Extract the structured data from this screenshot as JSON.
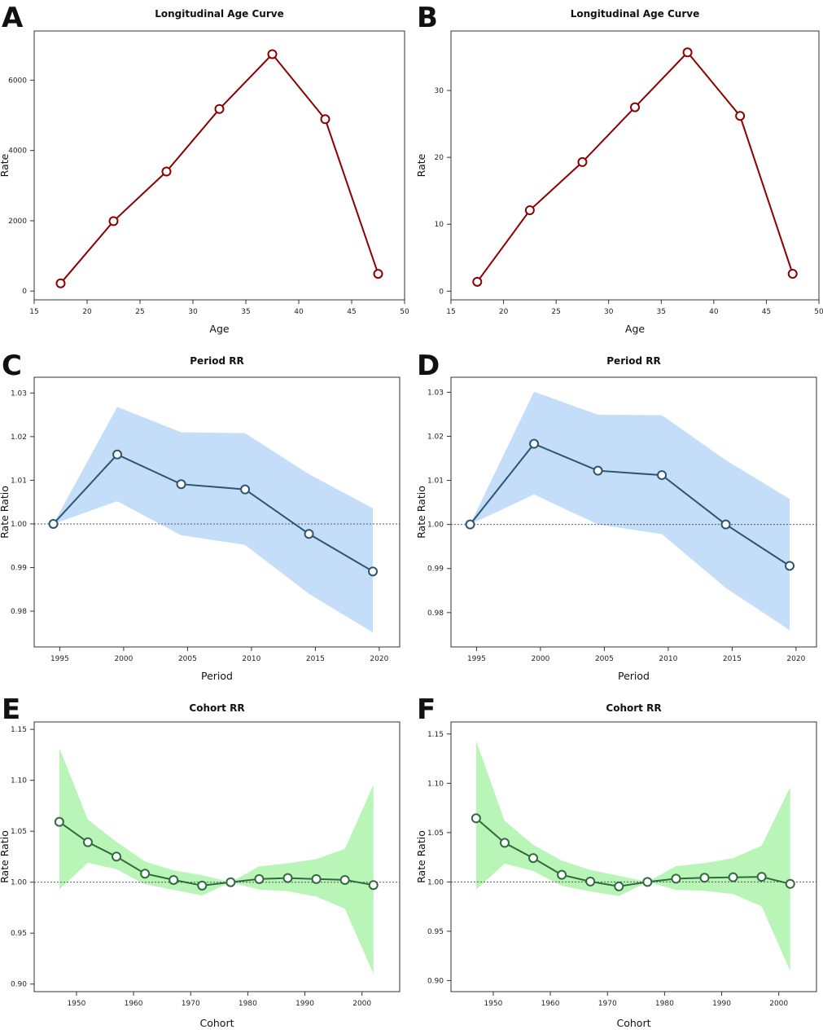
{
  "figure": {
    "panels": [
      "A",
      "B",
      "C",
      "D",
      "E",
      "F"
    ]
  },
  "chart_data": [
    {
      "panel": "A",
      "type": "line",
      "title": "Longitudinal Age Curve",
      "xlabel": "Age",
      "ylabel": "Rate",
      "xlim": [
        15,
        50
      ],
      "ylim": [
        -250,
        7400
      ],
      "xticks": [
        15,
        20,
        25,
        30,
        35,
        40,
        45,
        50
      ],
      "yticks": [
        0,
        2000,
        4000,
        6000
      ],
      "x": [
        17.5,
        22.5,
        27.5,
        32.5,
        37.5,
        42.5,
        47.5
      ],
      "y": [
        220,
        1990,
        3400,
        5180,
        6740,
        4890,
        490
      ],
      "line_color": "#8b0000",
      "marker_fill": "#ffffff",
      "band": null,
      "refline": null
    },
    {
      "panel": "B",
      "type": "line",
      "title": "Longitudinal Age Curve",
      "xlabel": "Age",
      "ylabel": "Rate",
      "xlim": [
        15,
        50
      ],
      "ylim": [
        -1.3,
        38.9
      ],
      "xticks": [
        15,
        20,
        25,
        30,
        35,
        40,
        45,
        50
      ],
      "yticks": [
        0,
        10,
        20,
        30
      ],
      "x": [
        17.5,
        22.5,
        27.5,
        32.5,
        37.5,
        42.5,
        47.5
      ],
      "y": [
        1.4,
        12.1,
        19.3,
        27.5,
        35.7,
        26.2,
        2.6
      ],
      "line_color": "#8b0000",
      "marker_fill": "#ffffff",
      "band": null,
      "refline": null
    },
    {
      "panel": "C",
      "type": "line",
      "title": "Period RR",
      "xlabel": "Period",
      "ylabel": "Rate Ratio",
      "xlim": [
        1993,
        2021.6
      ],
      "ylim": [
        0.9718,
        1.0336
      ],
      "xticks": [
        1995,
        2000,
        2005,
        2010,
        2015,
        2020
      ],
      "yticks": [
        0.98,
        0.99,
        1.0,
        1.01,
        1.02,
        1.03
      ],
      "ytick_labels": [
        "0.98",
        "0.99",
        "1.00",
        "1.01",
        "1.02",
        "1.03"
      ],
      "x": [
        1994.5,
        1999.5,
        2004.5,
        2009.5,
        2014.5,
        2019.5
      ],
      "y": [
        1.0,
        1.0159,
        1.0091,
        1.0079,
        0.9977,
        0.9891
      ],
      "band": {
        "lower": [
          1.0,
          1.0052,
          0.9974,
          0.9952,
          0.984,
          0.9751
        ],
        "upper": [
          1.0,
          1.0268,
          1.021,
          1.0208,
          1.0114,
          1.0036
        ],
        "color": "#c4ddf8"
      },
      "line_color": "#2c5670",
      "marker_fill": "#ffffff",
      "refline": 1.0
    },
    {
      "panel": "D",
      "type": "line",
      "title": "Period RR",
      "xlabel": "Period",
      "ylabel": "Rate Ratio",
      "xlim": [
        1993,
        2021.6
      ],
      "ylim": [
        0.9722,
        1.0334
      ],
      "xticks": [
        1995,
        2000,
        2005,
        2010,
        2015,
        2020
      ],
      "yticks": [
        0.98,
        0.99,
        1.0,
        1.01,
        1.02,
        1.03
      ],
      "ytick_labels": [
        "0.98",
        "0.99",
        "1.00",
        "1.01",
        "1.02",
        "1.03"
      ],
      "x": [
        1994.5,
        1999.5,
        2004.5,
        2009.5,
        2014.5,
        2019.5
      ],
      "y": [
        1.0,
        1.0183,
        1.0122,
        1.0112,
        1.0,
        0.9906
      ],
      "band": {
        "lower": [
          1.0,
          1.0068,
          1.0,
          0.9978,
          0.9856,
          0.976
        ],
        "upper": [
          1.0,
          1.0301,
          1.0249,
          1.0248,
          1.0146,
          1.0058
        ],
        "color": "#c4ddf8"
      },
      "line_color": "#2c5670",
      "marker_fill": "#ffffff",
      "refline": 1.0
    },
    {
      "panel": "E",
      "type": "line",
      "title": "Cohort RR",
      "xlabel": "Cohort",
      "ylabel": "Rate Ratio",
      "xlim": [
        1942.6,
        2006.6
      ],
      "ylim": [
        0.8926,
        1.1573
      ],
      "xticks": [
        1950,
        1960,
        1970,
        1980,
        1990,
        2000
      ],
      "yticks": [
        0.9,
        0.95,
        1.0,
        1.05,
        1.1,
        1.15
      ],
      "ytick_labels": [
        "0.90",
        "0.95",
        "1.00",
        "1.05",
        "1.10",
        "1.15"
      ],
      "x": [
        1947,
        1952,
        1957,
        1962,
        1967,
        1972,
        1977,
        1982,
        1987,
        1992,
        1997,
        2002
      ],
      "y": [
        1.0592,
        1.0392,
        1.0251,
        1.0084,
        1.0022,
        0.9967,
        1.0,
        1.0031,
        1.0041,
        1.0031,
        1.0022,
        0.9972
      ],
      "band": {
        "lower": [
          0.993,
          1.019,
          1.0128,
          0.998,
          0.9925,
          0.987,
          1.0,
          0.9928,
          0.9912,
          0.9858,
          0.9739,
          0.9102
        ],
        "upper": [
          1.1318,
          1.0614,
          1.0397,
          1.0203,
          1.0117,
          1.0069,
          1.0,
          1.0155,
          1.0185,
          1.0227,
          1.0327,
          1.0955
        ],
        "color": "#b9f5b7"
      },
      "line_color": "#2f6b3e",
      "marker_fill": "#ffffff",
      "refline": 1.0
    },
    {
      "panel": "F",
      "type": "line",
      "title": "Cohort RR",
      "xlabel": "Cohort",
      "ylabel": "Rate Ratio",
      "xlim": [
        1942.6,
        2006.6
      ],
      "ylim": [
        0.8888,
        1.1622
      ],
      "xticks": [
        1950,
        1960,
        1970,
        1980,
        1990,
        2000
      ],
      "yticks": [
        0.9,
        0.95,
        1.0,
        1.05,
        1.1,
        1.15
      ],
      "ytick_labels": [
        "0.90",
        "0.95",
        "1.00",
        "1.05",
        "1.10",
        "1.15"
      ],
      "x": [
        1947,
        1952,
        1957,
        1962,
        1967,
        1972,
        1977,
        1982,
        1987,
        1992,
        1997,
        2002
      ],
      "y": [
        1.0645,
        1.0396,
        1.0242,
        1.0072,
        1.0004,
        0.9955,
        1.0,
        1.0033,
        1.0042,
        1.0047,
        1.0052,
        0.998
      ],
      "band": {
        "lower": [
          0.9923,
          1.0186,
          1.0111,
          0.996,
          0.9904,
          0.9856,
          1.0,
          0.9919,
          0.991,
          0.9877,
          0.9752,
          0.9097
        ],
        "upper": [
          1.1431,
          1.0621,
          1.0376,
          1.0215,
          1.0122,
          1.0062,
          1.0,
          1.016,
          1.0191,
          1.024,
          1.0367,
          1.0962
        ],
        "color": "#b9f5b7"
      },
      "line_color": "#2f6b3e",
      "marker_fill": "#ffffff",
      "refline": 1.0
    }
  ]
}
